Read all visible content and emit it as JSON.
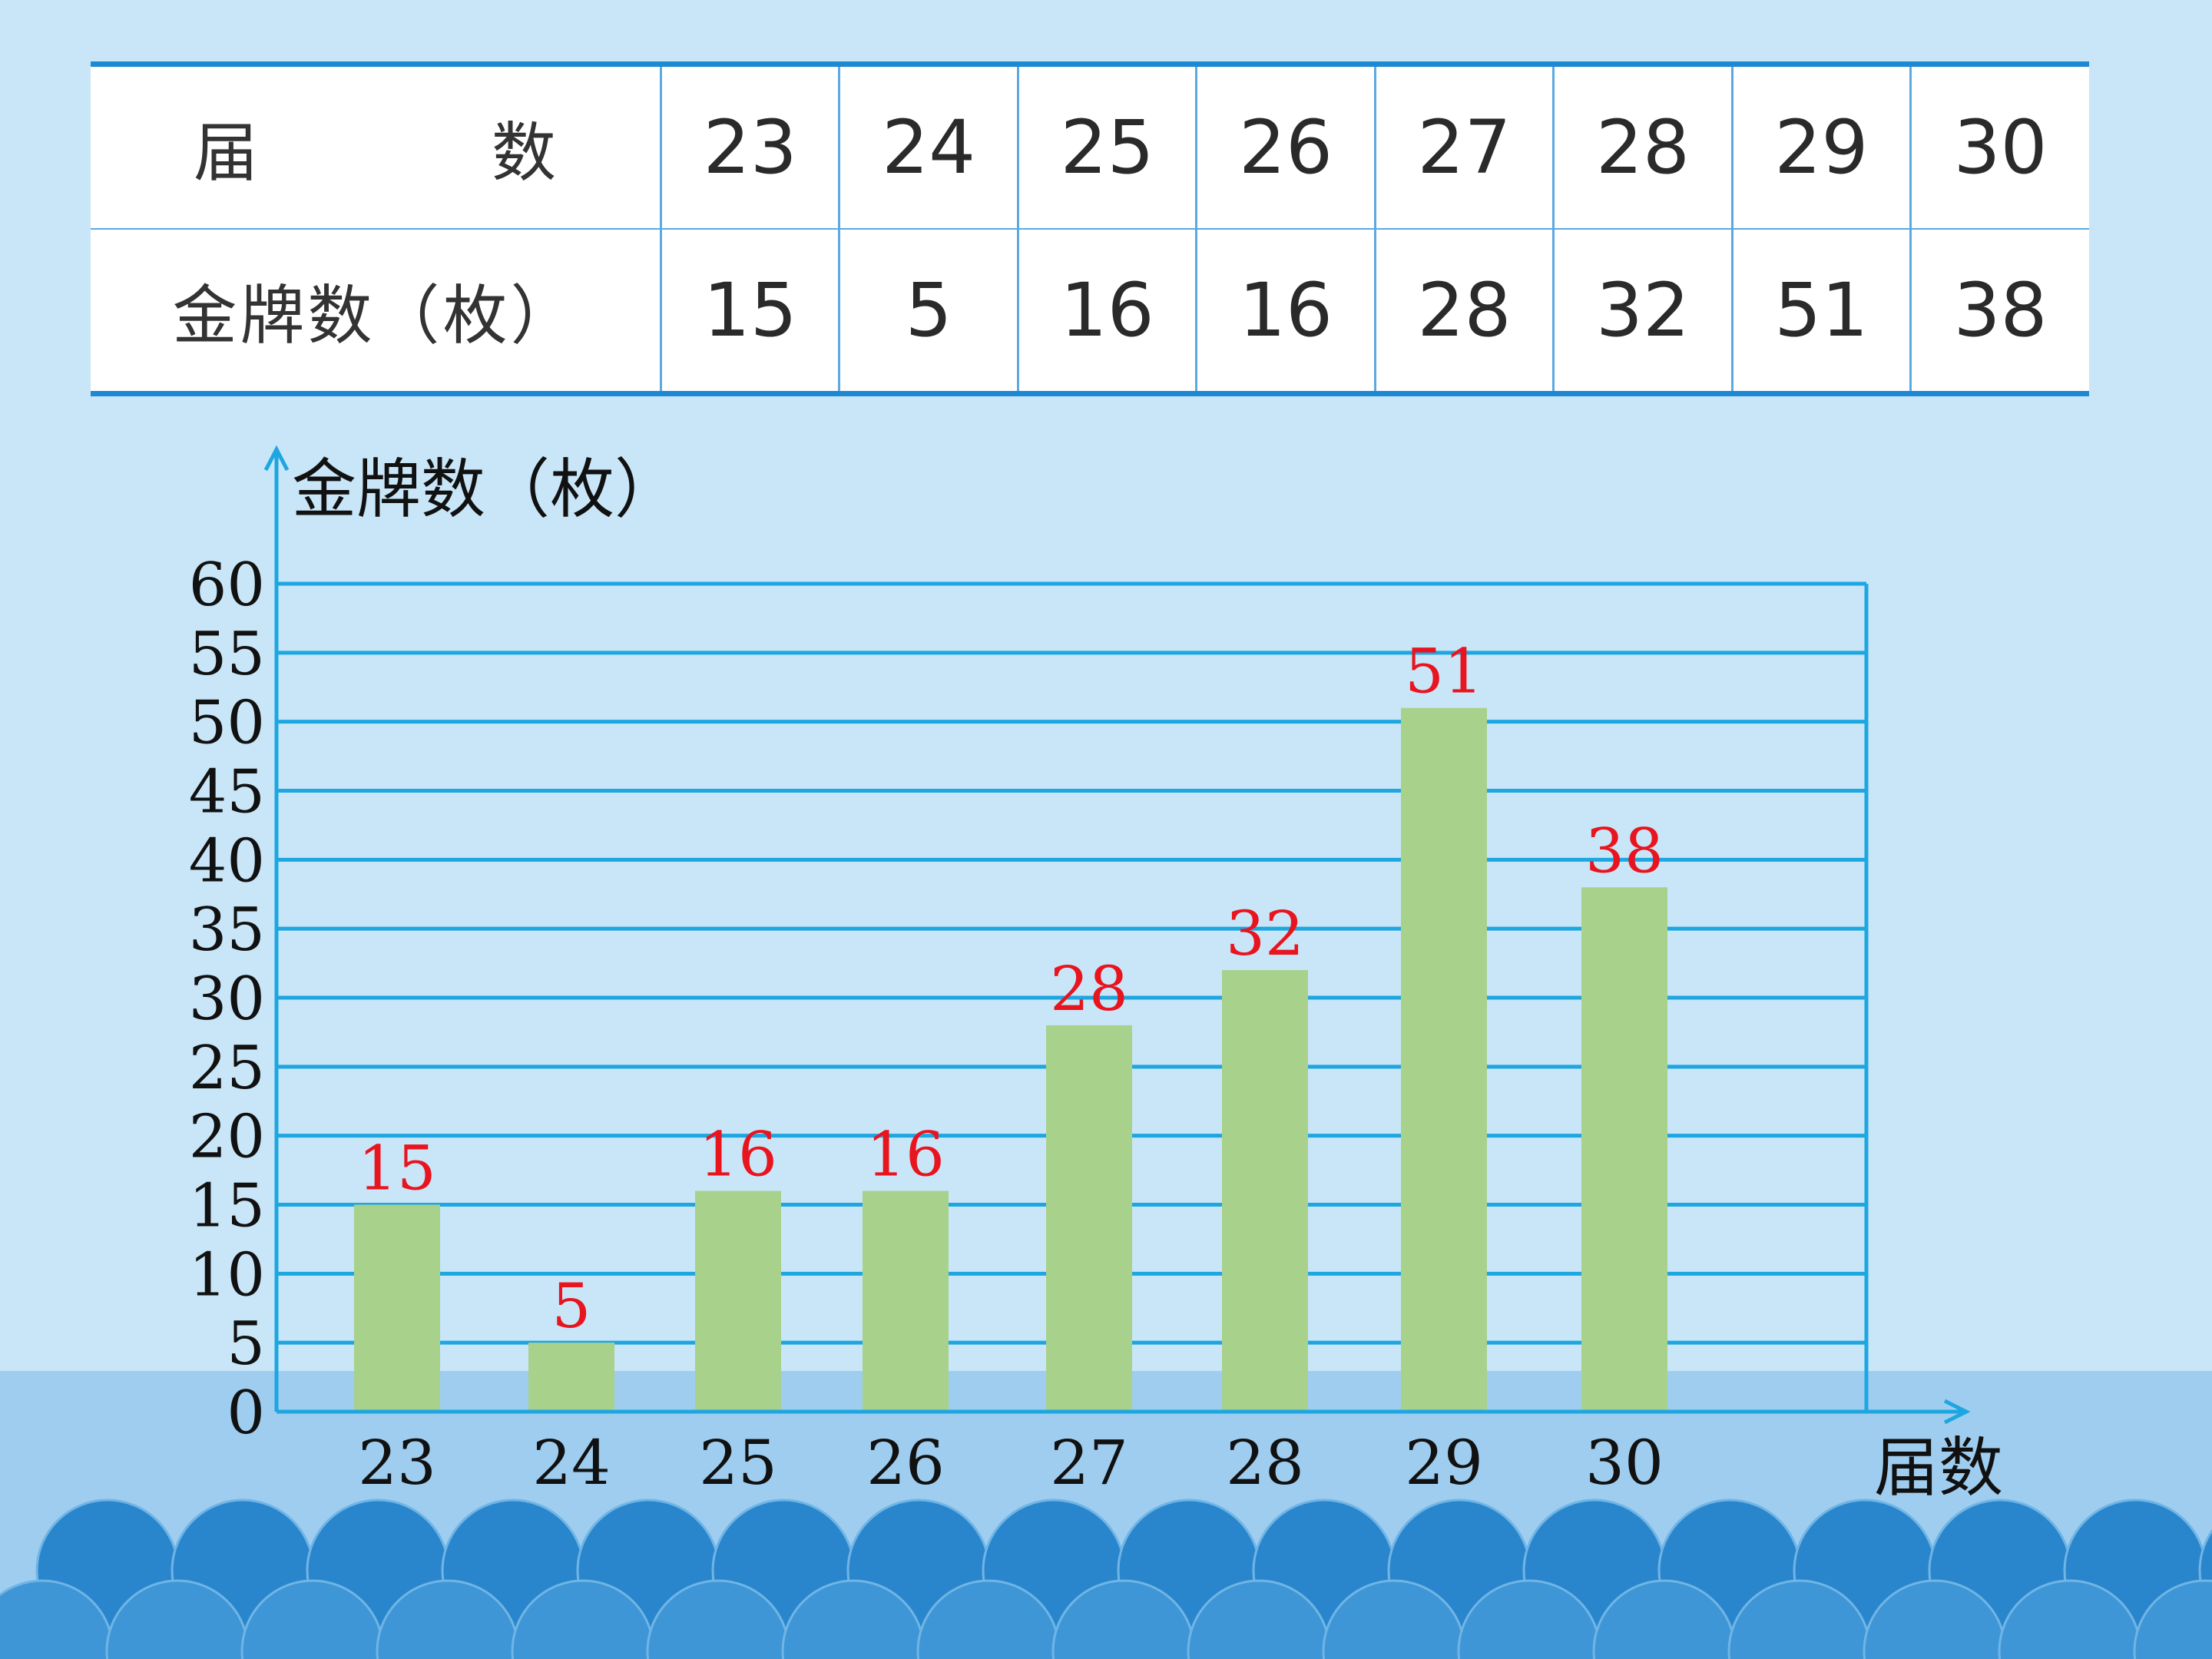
{
  "table": {
    "row1_header": "届　数",
    "row2_header": "金牌数（枚）",
    "sessions": [
      "23",
      "24",
      "25",
      "26",
      "27",
      "28",
      "29",
      "30"
    ],
    "medals": [
      "15",
      "5",
      "16",
      "16",
      "28",
      "32",
      "51",
      "38"
    ]
  },
  "colors": {
    "background": "#c9e6f8",
    "table_border": "#1e88d2",
    "grid": "#1da6e0",
    "bar": "#a8d18c",
    "value_label": "#e8141e",
    "waves_dark": "#2a86cc",
    "sea_band": "#9fcdef"
  },
  "chart_data": {
    "type": "bar",
    "ylabel": "金牌数（枚）",
    "xlabel": "届数",
    "categories": [
      "23",
      "24",
      "25",
      "26",
      "27",
      "28",
      "29",
      "30"
    ],
    "values": [
      15,
      5,
      16,
      16,
      28,
      32,
      51,
      38
    ],
    "ylim": [
      0,
      60
    ],
    "yticks": [
      0,
      5,
      10,
      15,
      20,
      25,
      30,
      35,
      40,
      45,
      50,
      55,
      60
    ],
    "grid": true,
    "data_labels": true
  }
}
